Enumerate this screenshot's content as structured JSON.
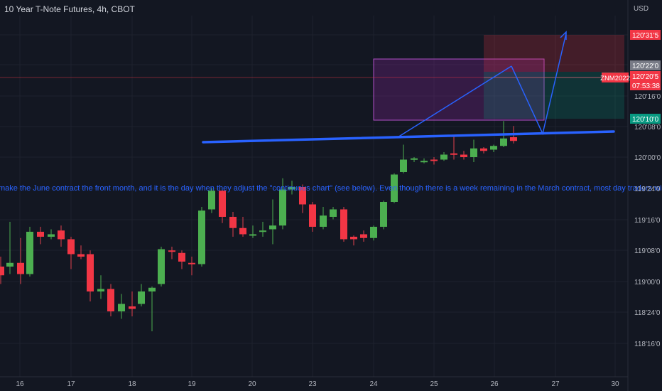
{
  "chart_data": {
    "type": "candlestick",
    "title": "10 Year T-Note Futures, 4h, CBOT",
    "currency": "USD",
    "x_tick_labels": [
      "16",
      "17",
      "18",
      "19",
      "20",
      "23",
      "24",
      "25",
      "26",
      "27",
      "30"
    ],
    "y_tick_labels": [
      "120'31'5",
      "120'22'0",
      "120'16'0",
      "120'08'0",
      "120'00'0",
      "119'24'0",
      "119'16'0",
      "119'08'0",
      "119'00'0",
      "118'24'0",
      "118'16'0"
    ],
    "price_labels": [
      {
        "text": "120'31'5",
        "color": "#f23645"
      },
      {
        "text": "120'22'0",
        "color": "#787b86"
      },
      {
        "text": "120'20'5",
        "color": "#f23645"
      },
      {
        "text": "07:53:38",
        "color": "#f23645"
      },
      {
        "text": "120'10'0",
        "color": "#089981"
      }
    ],
    "symbol_label": {
      "text": "ZNM2022",
      "color": "#f23645"
    },
    "annotation_text": "make the June contract the front month, and it is the day when they adjust the \"continuous chart\" (see below). Even though there is a week remaining in the March contract, most day traders will switch to trading J",
    "candles": [
      {
        "x": 1,
        "o": 119.12,
        "h": 119.2,
        "c": 119.05,
        "l": 118.98
      },
      {
        "x": 14,
        "o": 119.12,
        "h": 119.48,
        "c": 119.15,
        "l": 119.06
      },
      {
        "x": 29,
        "o": 119.15,
        "h": 119.35,
        "c": 119.06,
        "l": 118.98
      },
      {
        "x": 42,
        "o": 119.06,
        "h": 119.44,
        "c": 119.4,
        "l": 119.04
      },
      {
        "x": 57,
        "o": 119.4,
        "h": 119.44,
        "c": 119.36,
        "l": 119.3
      },
      {
        "x": 72,
        "o": 119.36,
        "h": 119.42,
        "c": 119.38,
        "l": 119.34
      },
      {
        "x": 86,
        "o": 119.41,
        "h": 119.45,
        "c": 119.34,
        "l": 119.28
      },
      {
        "x": 100,
        "o": 119.34,
        "h": 119.36,
        "c": 119.22,
        "l": 119.1
      },
      {
        "x": 114,
        "o": 119.22,
        "h": 119.29,
        "c": 119.2,
        "l": 119.18
      },
      {
        "x": 127,
        "o": 119.22,
        "h": 119.25,
        "c": 118.92,
        "l": 118.84
      },
      {
        "x": 142,
        "o": 118.92,
        "h": 119.05,
        "c": 118.94,
        "l": 118.86
      },
      {
        "x": 156,
        "o": 118.94,
        "h": 118.98,
        "c": 118.76,
        "l": 118.72
      },
      {
        "x": 171,
        "o": 118.76,
        "h": 118.9,
        "c": 118.82,
        "l": 118.7
      },
      {
        "x": 186,
        "o": 118.8,
        "h": 118.92,
        "c": 118.78,
        "l": 118.72
      },
      {
        "x": 199,
        "o": 118.82,
        "h": 118.98,
        "c": 118.92,
        "l": 118.8
      },
      {
        "x": 214,
        "o": 118.92,
        "h": 118.96,
        "c": 118.95,
        "l": 118.6
      },
      {
        "x": 227,
        "o": 118.98,
        "h": 119.28,
        "c": 119.26,
        "l": 118.96
      },
      {
        "x": 242,
        "o": 119.25,
        "h": 119.28,
        "c": 119.24,
        "l": 119.18
      },
      {
        "x": 256,
        "o": 119.23,
        "h": 119.25,
        "c": 119.16,
        "l": 119.1
      },
      {
        "x": 270,
        "o": 119.15,
        "h": 119.2,
        "c": 119.14,
        "l": 119.05
      },
      {
        "x": 284,
        "o": 119.14,
        "h": 119.6,
        "c": 119.57,
        "l": 119.12
      },
      {
        "x": 298,
        "o": 119.58,
        "h": 119.75,
        "c": 119.73,
        "l": 119.55
      },
      {
        "x": 313,
        "o": 119.73,
        "h": 119.74,
        "c": 119.52,
        "l": 119.47
      },
      {
        "x": 328,
        "o": 119.52,
        "h": 119.56,
        "c": 119.43,
        "l": 119.36
      },
      {
        "x": 342,
        "o": 119.43,
        "h": 119.52,
        "c": 119.38,
        "l": 119.36
      },
      {
        "x": 356,
        "o": 119.38,
        "h": 119.45,
        "c": 119.38,
        "l": 119.35
      },
      {
        "x": 370,
        "o": 119.4,
        "h": 119.48,
        "c": 119.41,
        "l": 119.36
      },
      {
        "x": 384,
        "o": 119.42,
        "h": 119.66,
        "c": 119.45,
        "l": 119.3
      },
      {
        "x": 398,
        "o": 119.45,
        "h": 119.83,
        "c": 119.74,
        "l": 119.42
      },
      {
        "x": 411,
        "o": 119.74,
        "h": 119.81,
        "c": 119.76,
        "l": 119.7
      },
      {
        "x": 426,
        "o": 119.76,
        "h": 119.78,
        "c": 119.62,
        "l": 119.55
      },
      {
        "x": 440,
        "o": 119.62,
        "h": 119.64,
        "c": 119.44,
        "l": 119.4
      },
      {
        "x": 455,
        "o": 119.44,
        "h": 119.6,
        "c": 119.53,
        "l": 119.42
      },
      {
        "x": 469,
        "o": 119.52,
        "h": 119.6,
        "c": 119.58,
        "l": 119.5
      },
      {
        "x": 484,
        "o": 119.58,
        "h": 119.6,
        "c": 119.34,
        "l": 119.32
      },
      {
        "x": 498,
        "o": 119.36,
        "h": 119.37,
        "c": 119.34,
        "l": 119.29
      },
      {
        "x": 512,
        "o": 119.38,
        "h": 119.41,
        "c": 119.35,
        "l": 119.32
      },
      {
        "x": 526,
        "o": 119.35,
        "h": 119.45,
        "c": 119.44,
        "l": 119.33
      },
      {
        "x": 540,
        "o": 119.44,
        "h": 119.65,
        "c": 119.64,
        "l": 119.42
      },
      {
        "x": 555,
        "o": 119.64,
        "h": 119.87,
        "c": 119.86,
        "l": 119.63
      },
      {
        "x": 568,
        "o": 119.88,
        "h": 120.1,
        "c": 119.98,
        "l": 119.87
      },
      {
        "x": 583,
        "o": 119.98,
        "h": 120.0,
        "c": 119.99,
        "l": 119.96
      },
      {
        "x": 597,
        "o": 119.97,
        "h": 119.99,
        "c": 119.97,
        "l": 119.95
      },
      {
        "x": 611,
        "o": 119.98,
        "h": 120.0,
        "c": 119.97,
        "l": 119.94
      },
      {
        "x": 625,
        "o": 119.98,
        "h": 120.04,
        "c": 120.02,
        "l": 119.97
      },
      {
        "x": 639,
        "o": 120.03,
        "h": 120.18,
        "c": 120.02,
        "l": 119.98
      },
      {
        "x": 653,
        "o": 120.02,
        "h": 120.05,
        "c": 120.0,
        "l": 119.98
      },
      {
        "x": 667,
        "o": 120.0,
        "h": 120.14,
        "c": 120.07,
        "l": 119.96
      },
      {
        "x": 681,
        "o": 120.07,
        "h": 120.08,
        "c": 120.05,
        "l": 120.03
      },
      {
        "x": 695,
        "o": 120.06,
        "h": 120.1,
        "c": 120.09,
        "l": 120.04
      },
      {
        "x": 709,
        "o": 120.09,
        "h": 120.29,
        "c": 120.15,
        "l": 120.08
      },
      {
        "x": 723,
        "o": 120.16,
        "h": 120.25,
        "c": 120.13,
        "l": 120.11
      }
    ]
  }
}
